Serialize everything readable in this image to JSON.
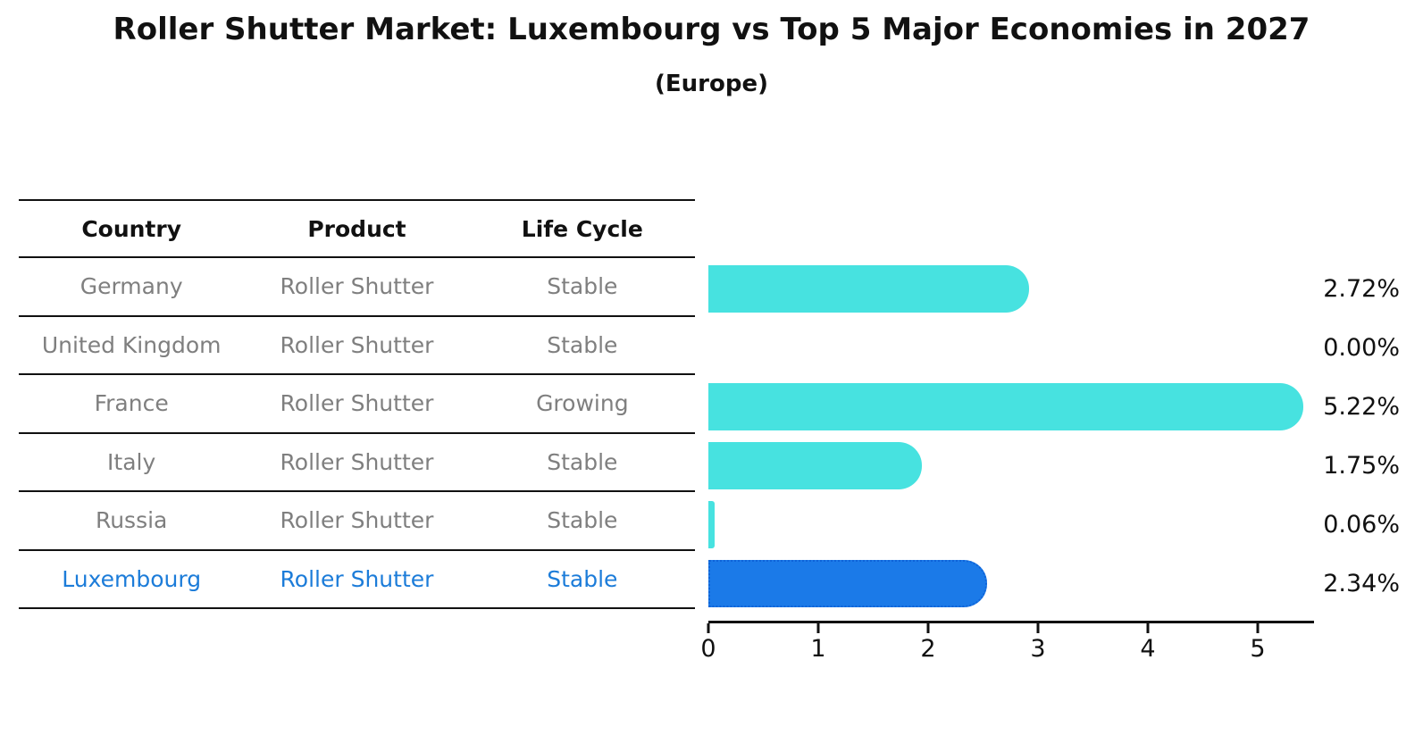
{
  "chart_data": {
    "type": "bar",
    "orientation": "horizontal",
    "title": "Roller Shutter Market: Luxembourg vs Top 5 Major Economies in 2027",
    "subtitle": "(Europe)",
    "categories": [
      "Germany",
      "United Kingdom",
      "France",
      "Italy",
      "Russia",
      "Luxembourg"
    ],
    "values": [
      2.72,
      0.0,
      5.22,
      1.75,
      0.06,
      2.34
    ],
    "value_labels": [
      "2.72%",
      "0.00%",
      "5.22%",
      "1.75%",
      "0.06%",
      "2.34%"
    ],
    "xlim": [
      0,
      5.5
    ],
    "x_ticks": [
      "0",
      "1",
      "2",
      "3",
      "4",
      "5"
    ],
    "grid": false,
    "legend": "none",
    "highlight_index": 5,
    "colors": {
      "bar": "#47E2E0",
      "highlight_bar": "#1B7AE8",
      "highlight_border": "#0E63D8",
      "highlight_text": "#1C7CD9",
      "row_text": "#7F7F7F",
      "axis": "#111111"
    }
  },
  "table": {
    "headers": [
      "Country",
      "Product",
      "Life Cycle"
    ],
    "rows": [
      {
        "country": "Germany",
        "product": "Roller Shutter",
        "life_cycle": "Stable",
        "highlight": false
      },
      {
        "country": "United Kingdom",
        "product": "Roller Shutter",
        "life_cycle": "Stable",
        "highlight": false
      },
      {
        "country": "France",
        "product": "Roller Shutter",
        "life_cycle": "Growing",
        "highlight": false
      },
      {
        "country": "Italy",
        "product": "Roller Shutter",
        "life_cycle": "Stable",
        "highlight": false
      },
      {
        "country": "Russia",
        "product": "Roller Shutter",
        "life_cycle": "Stable",
        "highlight": false
      },
      {
        "country": "Luxembourg",
        "product": "Roller Shutter",
        "life_cycle": "Stable",
        "highlight": true
      }
    ]
  }
}
